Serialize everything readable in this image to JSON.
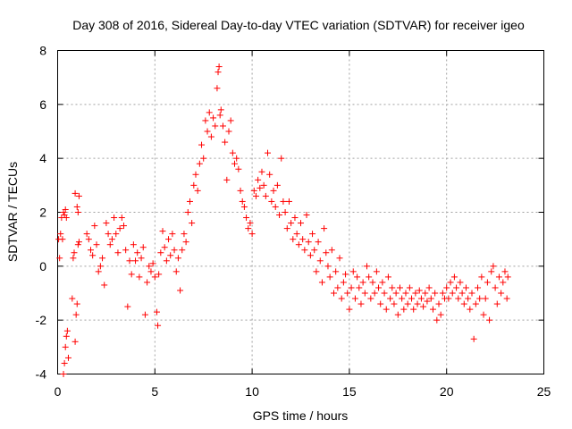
{
  "chart_data": {
    "type": "scatter",
    "title": "Day 308 of 2016, Sidereal Day-to-day VTEC variation (SDTVAR) for receiver igeo",
    "xlabel": "GPS time / hours",
    "ylabel": "SDTVAR / TECUs",
    "xlim": [
      0,
      25
    ],
    "ylim": [
      -4,
      8
    ],
    "xticks": [
      "0",
      "5",
      "10",
      "15",
      "20",
      "25"
    ],
    "yticks": [
      "-4",
      "-2",
      "0",
      "2",
      "4",
      "6",
      "8"
    ],
    "grid": true,
    "marker": "+",
    "color": "#ff0000",
    "series": [
      {
        "name": "SDTVAR",
        "points": [
          [
            0.05,
            1.0
          ],
          [
            0.1,
            0.3
          ],
          [
            0.15,
            1.2
          ],
          [
            0.2,
            1.8
          ],
          [
            0.25,
            1.0
          ],
          [
            0.3,
            2.0
          ],
          [
            0.35,
            1.9
          ],
          [
            0.4,
            2.1
          ],
          [
            0.45,
            1.8
          ],
          [
            0.3,
            -4.0
          ],
          [
            0.35,
            -3.6
          ],
          [
            0.4,
            -3.0
          ],
          [
            0.45,
            -2.6
          ],
          [
            0.5,
            -2.4
          ],
          [
            0.55,
            -3.4
          ],
          [
            0.75,
            -1.2
          ],
          [
            0.8,
            0.3
          ],
          [
            0.85,
            0.5
          ],
          [
            0.9,
            -2.8
          ],
          [
            0.95,
            -1.8
          ],
          [
            1.0,
            -1.4
          ],
          [
            1.05,
            0.8
          ],
          [
            1.1,
            0.9
          ],
          [
            0.9,
            2.7
          ],
          [
            1.0,
            2.2
          ],
          [
            1.05,
            2.0
          ],
          [
            1.1,
            2.6
          ],
          [
            1.5,
            1.2
          ],
          [
            1.6,
            1.0
          ],
          [
            1.7,
            0.6
          ],
          [
            1.8,
            0.4
          ],
          [
            1.9,
            1.5
          ],
          [
            2.0,
            0.8
          ],
          [
            2.1,
            -0.2
          ],
          [
            2.2,
            0.0
          ],
          [
            2.3,
            0.3
          ],
          [
            2.4,
            -0.7
          ],
          [
            2.5,
            1.6
          ],
          [
            2.6,
            1.2
          ],
          [
            2.7,
            0.8
          ],
          [
            2.8,
            1.0
          ],
          [
            2.9,
            1.8
          ],
          [
            3.0,
            1.2
          ],
          [
            3.1,
            0.5
          ],
          [
            3.2,
            1.4
          ],
          [
            3.3,
            1.8
          ],
          [
            3.4,
            1.5
          ],
          [
            3.5,
            0.6
          ],
          [
            3.6,
            -1.5
          ],
          [
            3.7,
            0.2
          ],
          [
            3.8,
            -0.3
          ],
          [
            3.9,
            0.8
          ],
          [
            4.0,
            0.2
          ],
          [
            4.1,
            0.5
          ],
          [
            4.2,
            -0.4
          ],
          [
            4.3,
            0.3
          ],
          [
            4.4,
            0.7
          ],
          [
            4.5,
            -1.8
          ],
          [
            4.6,
            -0.6
          ],
          [
            4.7,
            0.0
          ],
          [
            4.8,
            -0.2
          ],
          [
            4.9,
            0.1
          ],
          [
            5.0,
            -0.4
          ],
          [
            5.1,
            -1.7
          ],
          [
            5.15,
            -2.2
          ],
          [
            5.2,
            -0.3
          ],
          [
            5.3,
            0.5
          ],
          [
            5.4,
            1.3
          ],
          [
            5.5,
            0.7
          ],
          [
            5.6,
            0.2
          ],
          [
            5.7,
            1.0
          ],
          [
            5.8,
            0.4
          ],
          [
            5.9,
            1.2
          ],
          [
            6.0,
            0.6
          ],
          [
            6.1,
            -0.2
          ],
          [
            6.2,
            0.3
          ],
          [
            6.3,
            -0.9
          ],
          [
            6.4,
            0.6
          ],
          [
            6.5,
            1.2
          ],
          [
            6.6,
            0.9
          ],
          [
            6.7,
            2.0
          ],
          [
            6.8,
            2.4
          ],
          [
            6.9,
            1.6
          ],
          [
            7.0,
            3.0
          ],
          [
            7.1,
            3.4
          ],
          [
            7.2,
            2.8
          ],
          [
            7.3,
            3.8
          ],
          [
            7.4,
            4.5
          ],
          [
            7.5,
            4.0
          ],
          [
            7.6,
            5.4
          ],
          [
            7.7,
            5.0
          ],
          [
            7.8,
            5.7
          ],
          [
            7.9,
            4.8
          ],
          [
            8.0,
            5.5
          ],
          [
            8.1,
            5.2
          ],
          [
            8.2,
            6.6
          ],
          [
            8.25,
            7.2
          ],
          [
            8.3,
            7.4
          ],
          [
            8.35,
            5.6
          ],
          [
            8.4,
            5.8
          ],
          [
            8.5,
            5.2
          ],
          [
            8.6,
            4.6
          ],
          [
            8.7,
            3.2
          ],
          [
            8.8,
            5.0
          ],
          [
            8.9,
            5.4
          ],
          [
            9.0,
            4.2
          ],
          [
            9.1,
            3.8
          ],
          [
            9.2,
            4.0
          ],
          [
            9.3,
            3.6
          ],
          [
            9.4,
            2.8
          ],
          [
            9.5,
            2.4
          ],
          [
            9.6,
            2.2
          ],
          [
            9.7,
            1.8
          ],
          [
            9.8,
            1.4
          ],
          [
            9.9,
            1.6
          ],
          [
            10.0,
            1.2
          ],
          [
            10.1,
            2.8
          ],
          [
            10.2,
            2.6
          ],
          [
            10.3,
            3.2
          ],
          [
            10.4,
            2.9
          ],
          [
            10.5,
            3.5
          ],
          [
            10.6,
            3.0
          ],
          [
            10.7,
            2.6
          ],
          [
            10.8,
            4.2
          ],
          [
            10.9,
            3.4
          ],
          [
            11.0,
            2.4
          ],
          [
            11.1,
            2.8
          ],
          [
            11.2,
            2.2
          ],
          [
            11.3,
            3.0
          ],
          [
            11.4,
            1.9
          ],
          [
            11.5,
            4.0
          ],
          [
            11.6,
            2.4
          ],
          [
            11.7,
            2.0
          ],
          [
            11.8,
            1.4
          ],
          [
            11.9,
            2.4
          ],
          [
            12.0,
            1.6
          ],
          [
            12.1,
            1.0
          ],
          [
            12.2,
            1.8
          ],
          [
            12.3,
            1.2
          ],
          [
            12.4,
            0.8
          ],
          [
            12.5,
            1.6
          ],
          [
            12.6,
            1.0
          ],
          [
            12.7,
            0.6
          ],
          [
            12.8,
            1.9
          ],
          [
            12.9,
            0.9
          ],
          [
            13.0,
            0.4
          ],
          [
            13.1,
            1.2
          ],
          [
            13.2,
            0.6
          ],
          [
            13.3,
            -0.2
          ],
          [
            13.4,
            0.9
          ],
          [
            13.5,
            0.2
          ],
          [
            13.6,
            -0.6
          ],
          [
            13.7,
            1.4
          ],
          [
            13.8,
            0.5
          ],
          [
            13.9,
            0.0
          ],
          [
            14.0,
            -0.4
          ],
          [
            14.1,
            0.6
          ],
          [
            14.2,
            -1.0
          ],
          [
            14.3,
            -0.2
          ],
          [
            14.4,
            -0.8
          ],
          [
            14.5,
            0.3
          ],
          [
            14.6,
            -1.2
          ],
          [
            14.7,
            -0.6
          ],
          [
            14.8,
            -0.3
          ],
          [
            14.9,
            -1.0
          ],
          [
            15.0,
            -1.6
          ],
          [
            15.1,
            -0.8
          ],
          [
            15.2,
            -0.2
          ],
          [
            15.3,
            -1.2
          ],
          [
            15.4,
            -0.4
          ],
          [
            15.5,
            -0.8
          ],
          [
            15.6,
            -1.4
          ],
          [
            15.7,
            -0.6
          ],
          [
            15.8,
            -1.0
          ],
          [
            15.9,
            0.0
          ],
          [
            16.0,
            -0.4
          ],
          [
            16.1,
            -1.2
          ],
          [
            16.2,
            -0.6
          ],
          [
            16.3,
            -1.0
          ],
          [
            16.4,
            -0.2
          ],
          [
            16.5,
            -0.8
          ],
          [
            16.6,
            -1.4
          ],
          [
            16.7,
            -0.6
          ],
          [
            16.8,
            -1.0
          ],
          [
            16.9,
            -1.6
          ],
          [
            17.0,
            -0.4
          ],
          [
            17.1,
            -1.2
          ],
          [
            17.2,
            -0.8
          ],
          [
            17.3,
            -1.4
          ],
          [
            17.4,
            -1.0
          ],
          [
            17.5,
            -1.8
          ],
          [
            17.6,
            -0.8
          ],
          [
            17.7,
            -1.2
          ],
          [
            17.8,
            -1.6
          ],
          [
            17.9,
            -1.0
          ],
          [
            18.0,
            -1.4
          ],
          [
            18.1,
            -0.8
          ],
          [
            18.2,
            -1.2
          ],
          [
            18.3,
            -1.6
          ],
          [
            18.4,
            -1.0
          ],
          [
            18.5,
            -1.4
          ],
          [
            18.6,
            -0.9
          ],
          [
            18.7,
            -1.2
          ],
          [
            18.8,
            -1.5
          ],
          [
            18.9,
            -1.0
          ],
          [
            19.0,
            -1.3
          ],
          [
            19.1,
            -0.8
          ],
          [
            19.2,
            -1.2
          ],
          [
            19.3,
            -1.6
          ],
          [
            19.4,
            -1.0
          ],
          [
            19.5,
            -2.0
          ],
          [
            19.6,
            -1.4
          ],
          [
            19.7,
            -1.8
          ],
          [
            19.8,
            -1.0
          ],
          [
            19.9,
            -1.2
          ],
          [
            20.0,
            -0.8
          ],
          [
            20.1,
            -1.2
          ],
          [
            20.2,
            -0.6
          ],
          [
            20.3,
            -1.0
          ],
          [
            20.4,
            -0.4
          ],
          [
            20.5,
            -0.8
          ],
          [
            20.6,
            -1.2
          ],
          [
            20.7,
            -0.6
          ],
          [
            20.8,
            -1.0
          ],
          [
            20.9,
            -1.4
          ],
          [
            21.0,
            -0.8
          ],
          [
            21.1,
            -1.2
          ],
          [
            21.2,
            -1.6
          ],
          [
            21.3,
            -1.0
          ],
          [
            21.4,
            -2.7
          ],
          [
            21.5,
            -1.4
          ],
          [
            21.6,
            -0.8
          ],
          [
            21.7,
            -1.2
          ],
          [
            21.8,
            -0.4
          ],
          [
            21.9,
            -1.8
          ],
          [
            22.0,
            -1.2
          ],
          [
            22.1,
            -0.6
          ],
          [
            22.2,
            -2.0
          ],
          [
            22.3,
            -0.2
          ],
          [
            22.4,
            0.0
          ],
          [
            22.5,
            -0.8
          ],
          [
            22.6,
            -1.4
          ],
          [
            22.7,
            -0.4
          ],
          [
            22.8,
            -1.0
          ],
          [
            22.9,
            -0.6
          ],
          [
            23.0,
            -0.2
          ],
          [
            23.1,
            -1.2
          ],
          [
            23.15,
            -0.4
          ]
        ]
      }
    ]
  }
}
